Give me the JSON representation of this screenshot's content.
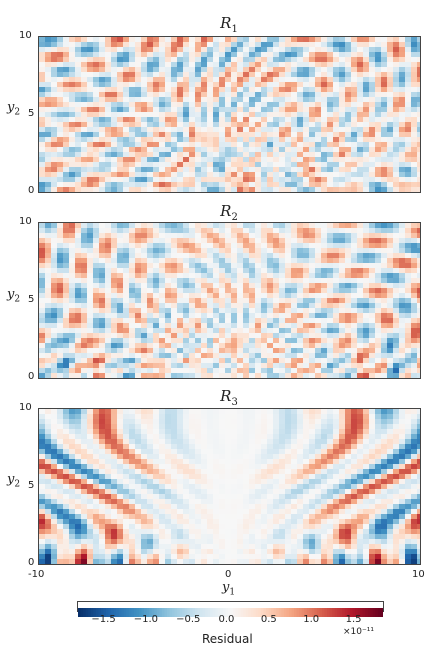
{
  "chart_data": [
    {
      "type": "heatmap",
      "title_main": "R",
      "title_sub": "1",
      "ylabel_main": "y",
      "ylabel_sub": "2",
      "xlim": [
        -10,
        10
      ],
      "ylim": [
        0,
        10
      ],
      "yticks": [
        "0",
        "5",
        "10"
      ],
      "color_range": [
        -1.8e-11,
        1.8e-11
      ]
    },
    {
      "type": "heatmap",
      "title_main": "R",
      "title_sub": "2",
      "ylabel_main": "y",
      "ylabel_sub": "2",
      "xlim": [
        -10,
        10
      ],
      "ylim": [
        0,
        10
      ],
      "yticks": [
        "0",
        "5",
        "10"
      ],
      "color_range": [
        -1.8e-11,
        1.8e-11
      ]
    },
    {
      "type": "heatmap",
      "title_main": "R",
      "title_sub": "3",
      "ylabel_main": "y",
      "ylabel_sub": "2",
      "xlabel_main": "y",
      "xlabel_sub": "1",
      "xlim": [
        -10,
        10
      ],
      "ylim": [
        0,
        10
      ],
      "xticks": [
        "-10",
        "0",
        "10"
      ],
      "yticks": [
        "0",
        "5",
        "10"
      ],
      "color_range": [
        -1.8e-11,
        1.8e-11
      ]
    }
  ],
  "colorbar": {
    "label": "Residual",
    "ticks": [
      "−1.5",
      "−1.0",
      "−0.5",
      "0.0",
      "0.5",
      "1.0",
      "1.5"
    ],
    "tick_values": [
      -1.5,
      -1.0,
      -0.5,
      0.0,
      0.5,
      1.0,
      1.5
    ],
    "range": [
      -1.8,
      1.8
    ],
    "exponent": "×10⁻¹¹",
    "colormap": "RdBu_r",
    "colors": [
      "#08306b",
      "#2166ac",
      "#4393c3",
      "#92c5de",
      "#d1e5f0",
      "#f7f7f7",
      "#fddbc7",
      "#f4a582",
      "#d6604d",
      "#b2182b",
      "#67001f"
    ]
  }
}
